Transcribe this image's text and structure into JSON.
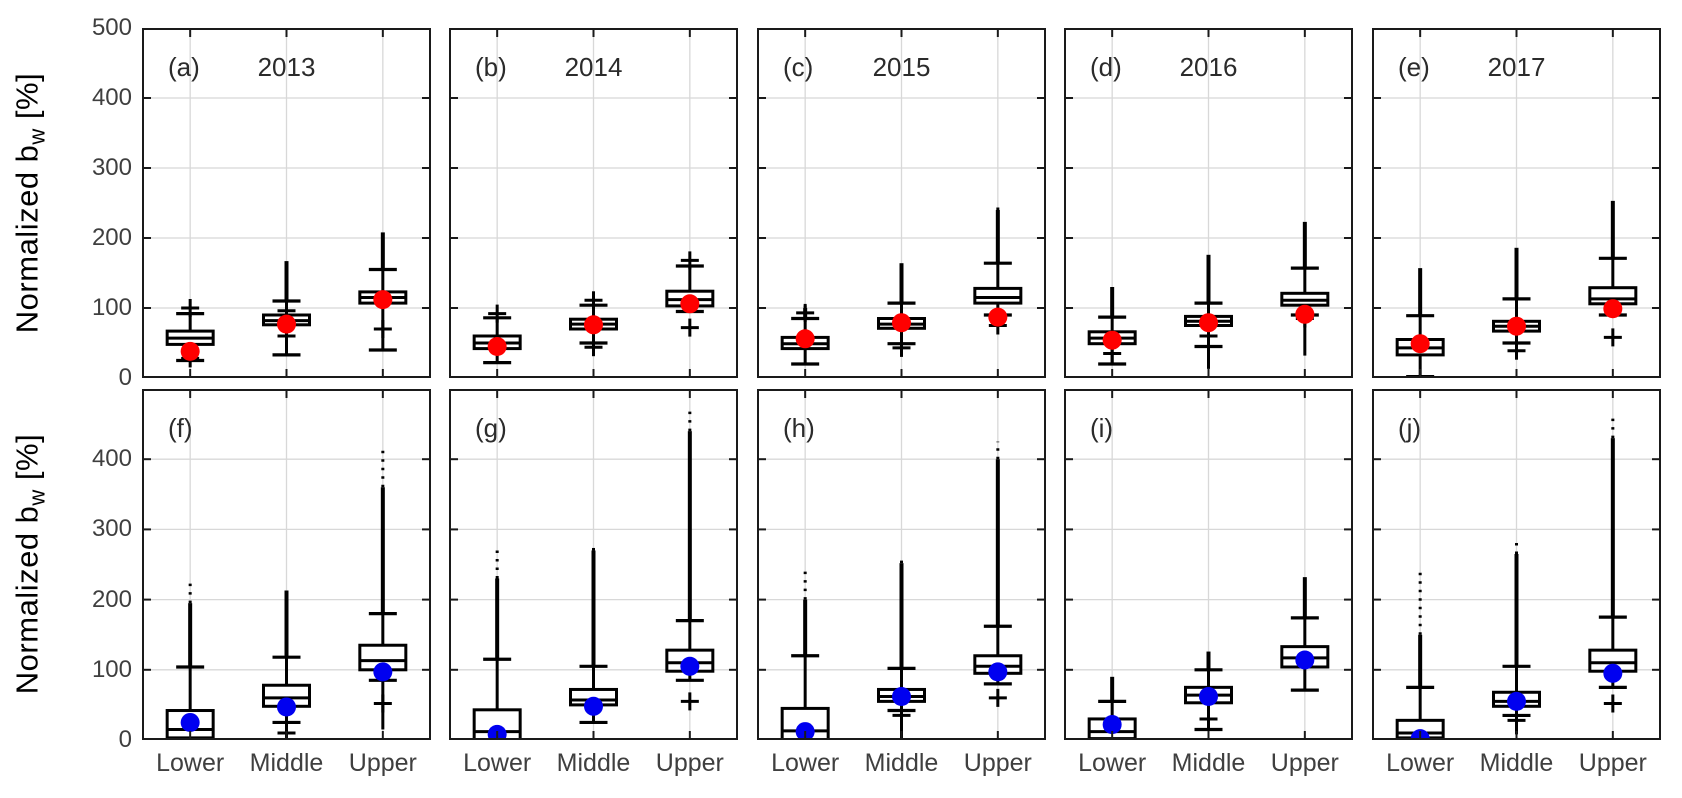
{
  "labels": {
    "ylabel_main": "Normalized b",
    "ylabel_sub": "w",
    "ylabel_unit": " [%]"
  },
  "colors": {
    "mean_top": "#ff0000",
    "mean_bottom": "#0000f0",
    "box": "#000000",
    "grid": "#d8d8d8",
    "axis": "#1a1a1a",
    "tick_text": "#3f3f3f",
    "annotation_text": "#2b2b2b"
  },
  "chart_data": {
    "type": "boxplot-grid",
    "categories": [
      "Lower",
      "Middle",
      "Upper"
    ],
    "ylabel": "Normalized bw [%]",
    "rows": [
      {
        "name": "top-row",
        "mean_color": "#ff0000",
        "ylim": [
          0,
          500
        ],
        "yticks": [
          0,
          100,
          200,
          300,
          400,
          500
        ],
        "panels": [
          {
            "letter": "(a)",
            "year": "2013",
            "boxes": [
              {
                "cat": "Lower",
                "whis_lo": 25,
                "q1": 48,
                "med": 57,
                "q3": 67,
                "whis_hi": 92,
                "plus_hi": [
                  100
                ],
                "plus_lo": [
                  28
                ],
                "mean": 38
              },
              {
                "cat": "Middle",
                "whis_lo": 33,
                "q1": 76,
                "med": 82,
                "q3": 90,
                "whis_hi": 110,
                "stem_hi": 167,
                "plus_hi": [
                  96
                ],
                "plus_lo": [
                  60
                ],
                "mean": 77
              },
              {
                "cat": "Upper",
                "whis_lo": 40,
                "q1": 107,
                "med": 115,
                "q3": 123,
                "whis_hi": 155,
                "stem_hi": 208,
                "plus_lo": [
                  70
                ],
                "mean": 112
              }
            ]
          },
          {
            "letter": "(b)",
            "year": "2014",
            "boxes": [
              {
                "cat": "Lower",
                "whis_lo": 22,
                "q1": 42,
                "med": 50,
                "q3": 60,
                "whis_hi": 86,
                "plus_hi": [
                  92
                ],
                "mean": 45
              },
              {
                "cat": "Middle",
                "whis_lo": 50,
                "q1": 70,
                "med": 77,
                "q3": 84,
                "whis_hi": 104,
                "plus_hi": [
                  111
                ],
                "plus_lo": [
                  44
                ],
                "mean": 76
              },
              {
                "cat": "Upper",
                "whis_lo": 95,
                "q1": 103,
                "med": 112,
                "q3": 124,
                "whis_hi": 160,
                "plus_hi": [
                  168
                ],
                "plus_lo": [
                  72
                ],
                "mean": 106
              }
            ]
          },
          {
            "letter": "(c)",
            "year": "2015",
            "boxes": [
              {
                "cat": "Lower",
                "whis_lo": 20,
                "q1": 42,
                "med": 49,
                "q3": 58,
                "whis_hi": 85,
                "stem_hi": 100,
                "dots_hi": 112,
                "plus_hi": [
                  93
                ],
                "mean": 56
              },
              {
                "cat": "Middle",
                "whis_lo": 49,
                "q1": 71,
                "med": 77,
                "q3": 85,
                "whis_hi": 107,
                "stem_hi": 164,
                "plus_lo": [
                  43
                ],
                "mean": 79
              },
              {
                "cat": "Upper",
                "whis_lo": 90,
                "q1": 107,
                "med": 115,
                "q3": 128,
                "whis_hi": 164,
                "stem_hi": 240,
                "dots_hi": 247,
                "plus_lo": [
                  75
                ],
                "mean": 87
              }
            ]
          },
          {
            "letter": "(d)",
            "year": "2016",
            "boxes": [
              {
                "cat": "Lower",
                "whis_lo": 20,
                "q1": 49,
                "med": 57,
                "q3": 66,
                "whis_hi": 87,
                "stem_hi": 130,
                "plus_lo": [
                  35
                ],
                "mean": 54
              },
              {
                "cat": "Middle",
                "whis_lo": 45,
                "stem_lo": 13,
                "q1": 75,
                "med": 81,
                "q3": 88,
                "whis_hi": 107,
                "stem_hi": 176,
                "plus_lo": [
                  60
                ],
                "mean": 79
              },
              {
                "cat": "Upper",
                "whis_lo": 90,
                "stem_lo": 32,
                "q1": 104,
                "med": 111,
                "q3": 121,
                "whis_hi": 157,
                "stem_hi": 223,
                "plus_lo": [
                  85
                ],
                "mean": 91
              }
            ]
          },
          {
            "letter": "(e)",
            "year": "2017",
            "boxes": [
              {
                "cat": "Lower",
                "whis_lo": 2,
                "q1": 33,
                "med": 43,
                "q3": 55,
                "whis_hi": 89,
                "stem_hi": 157,
                "mean": 49
              },
              {
                "cat": "Middle",
                "whis_lo": 50,
                "q1": 67,
                "med": 74,
                "q3": 81,
                "whis_hi": 113,
                "stem_hi": 186,
                "plus_lo": [
                  39
                ],
                "mean": 74
              },
              {
                "cat": "Upper",
                "whis_lo": 90,
                "q1": 106,
                "med": 113,
                "q3": 129,
                "whis_hi": 171,
                "stem_hi": 253,
                "plus_lo": [
                  58
                ],
                "mean": 99
              }
            ]
          }
        ]
      },
      {
        "name": "bottom-row",
        "mean_color": "#0000f0",
        "ylim": [
          0,
          500
        ],
        "yticks": [
          0,
          100,
          200,
          300,
          400
        ],
        "panels": [
          {
            "letter": "(f)",
            "year": "",
            "boxes": [
              {
                "cat": "Lower",
                "whis_lo": 0,
                "q1": 3,
                "med": 15,
                "q3": 42,
                "whis_hi": 104,
                "stem_hi": 195,
                "dots_hi": 230,
                "mean": 25
              },
              {
                "cat": "Middle",
                "whis_lo": 25,
                "q1": 48,
                "med": 60,
                "q3": 78,
                "whis_hi": 118,
                "stem_hi": 213,
                "plus_lo": [
                  10
                ],
                "mean": 47
              },
              {
                "cat": "Upper",
                "whis_lo": 85,
                "stem_lo": 15,
                "q1": 100,
                "med": 113,
                "q3": 135,
                "whis_hi": 180,
                "stem_hi": 360,
                "dots_hi": 415,
                "plus_lo": [
                  52
                ],
                "mean": 97
              }
            ]
          },
          {
            "letter": "(g)",
            "year": "",
            "boxes": [
              {
                "cat": "Lower",
                "whis_lo": 0,
                "q1": 0,
                "med": 12,
                "q3": 43,
                "whis_hi": 115,
                "stem_hi": 230,
                "dots_hi": 278,
                "mean": 8
              },
              {
                "cat": "Middle",
                "whis_lo": 25,
                "q1": 50,
                "med": 57,
                "q3": 72,
                "whis_hi": 105,
                "stem_hi": 270,
                "dots_hi": 280,
                "mean": 48
              },
              {
                "cat": "Upper",
                "whis_lo": 85,
                "q1": 98,
                "med": 110,
                "q3": 128,
                "whis_hi": 170,
                "stem_hi": 440,
                "dots_hi": 470,
                "plus_lo": [
                  55
                ],
                "mean": 105
              }
            ]
          },
          {
            "letter": "(h)",
            "year": "",
            "boxes": [
              {
                "cat": "Lower",
                "whis_lo": 0,
                "q1": 0,
                "med": 13,
                "q3": 45,
                "whis_hi": 120,
                "stem_hi": 200,
                "dots_hi": 245,
                "mean": 12
              },
              {
                "cat": "Middle",
                "whis_lo": 42,
                "stem_lo": 0,
                "q1": 55,
                "med": 62,
                "q3": 72,
                "whis_hi": 102,
                "stem_hi": 252,
                "dots_hi": 263,
                "plus_lo": [
                  35
                ],
                "mean": 62
              },
              {
                "cat": "Upper",
                "whis_lo": 80,
                "q1": 95,
                "med": 105,
                "q3": 120,
                "whis_hi": 162,
                "stem_hi": 400,
                "dots_hi": 425,
                "plus_lo": [
                  60
                ],
                "mean": 97
              }
            ]
          },
          {
            "letter": "(i)",
            "year": "",
            "boxes": [
              {
                "cat": "Lower",
                "whis_lo": 0,
                "q1": 2,
                "med": 12,
                "q3": 30,
                "whis_hi": 55,
                "stem_hi": 90,
                "mean": 22
              },
              {
                "cat": "Middle",
                "whis_lo": 15,
                "q1": 53,
                "med": 64,
                "q3": 75,
                "whis_hi": 100,
                "stem_hi": 126,
                "plus_lo": [
                  30
                ],
                "mean": 62
              },
              {
                "cat": "Upper",
                "whis_lo": 71,
                "q1": 104,
                "med": 117,
                "q3": 133,
                "whis_hi": 174,
                "stem_hi": 232,
                "mean": 114
              }
            ]
          },
          {
            "letter": "(j)",
            "year": "",
            "boxes": [
              {
                "cat": "Lower",
                "whis_lo": 0,
                "q1": 3,
                "med": 10,
                "q3": 28,
                "whis_hi": 75,
                "stem_hi": 150,
                "dots_hi": 240,
                "mean": 2
              },
              {
                "cat": "Middle",
                "whis_lo": 35,
                "stem_lo": 8,
                "q1": 48,
                "med": 55,
                "q3": 68,
                "whis_hi": 105,
                "stem_hi": 265,
                "dots_hi": 285,
                "plus_lo": [
                  28
                ],
                "mean": 55
              },
              {
                "cat": "Upper",
                "whis_lo": 75,
                "q1": 98,
                "med": 110,
                "q3": 128,
                "whis_hi": 175,
                "stem_hi": 430,
                "dots_hi": 465,
                "plus_lo": [
                  52
                ],
                "mean": 95
              }
            ]
          }
        ]
      }
    ]
  }
}
